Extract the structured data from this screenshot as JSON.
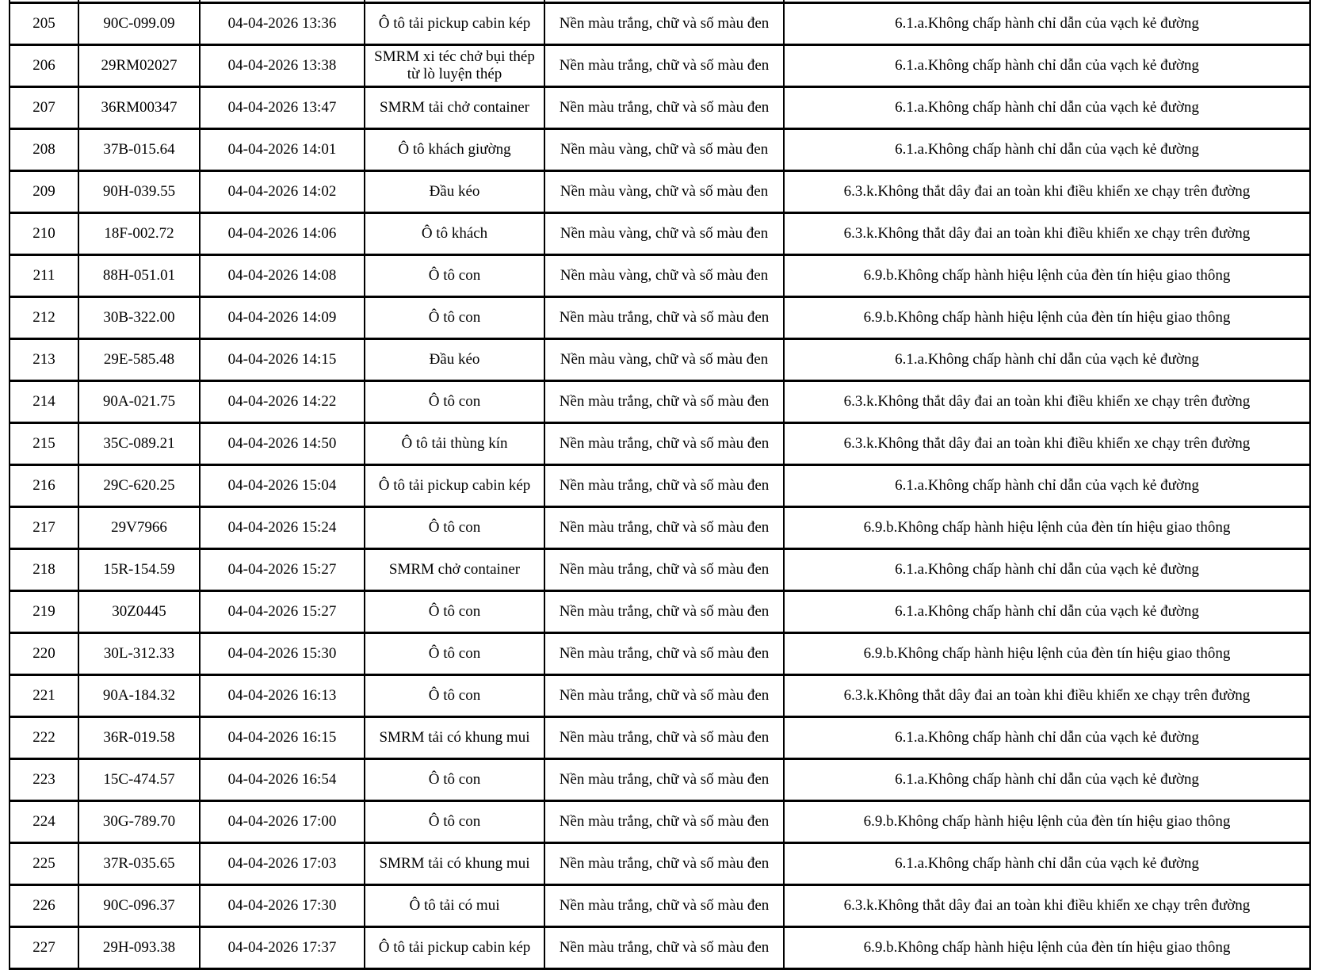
{
  "colors": {
    "border": "#000000",
    "text": "#000000",
    "background": "#ffffff"
  },
  "table": {
    "columns": [
      {
        "key": "stt"
      },
      {
        "key": "plate"
      },
      {
        "key": "datetime"
      },
      {
        "key": "vehicle"
      },
      {
        "key": "plate_colors"
      },
      {
        "key": "violation"
      }
    ],
    "rows": [
      {
        "stt": "205",
        "plate": "90C-099.09",
        "datetime": "04-04-2026 13:36",
        "vehicle": "Ô tô tải pickup cabin kép",
        "plate_colors": "Nền màu trắng, chữ và số màu đen",
        "violation": "6.1.a.Không chấp hành chỉ dẫn của vạch kẻ đường"
      },
      {
        "stt": "206",
        "plate": "29RM02027",
        "datetime": "04-04-2026 13:38",
        "vehicle": "SMRM xi téc chở bụi thép từ lò luyện thép",
        "plate_colors": "Nền màu trắng, chữ và số màu đen",
        "violation": "6.1.a.Không chấp hành chỉ dẫn của vạch kẻ đường"
      },
      {
        "stt": "207",
        "plate": "36RM00347",
        "datetime": "04-04-2026 13:47",
        "vehicle": "SMRM tải chở container",
        "plate_colors": "Nền màu trắng, chữ và số màu đen",
        "violation": "6.1.a.Không chấp hành chỉ dẫn của vạch kẻ đường"
      },
      {
        "stt": "208",
        "plate": "37B-015.64",
        "datetime": "04-04-2026 14:01",
        "vehicle": "Ô tô khách giường",
        "plate_colors": "Nền màu vàng, chữ và số màu đen",
        "violation": "6.1.a.Không chấp hành chỉ dẫn của vạch kẻ đường"
      },
      {
        "stt": "209",
        "plate": "90H-039.55",
        "datetime": "04-04-2026 14:02",
        "vehicle": "Đầu kéo",
        "plate_colors": "Nền màu vàng, chữ và số màu đen",
        "violation": "6.3.k.Không thắt dây đai an toàn khi điều khiển xe chạy trên đường"
      },
      {
        "stt": "210",
        "plate": "18F-002.72",
        "datetime": "04-04-2026 14:06",
        "vehicle": "Ô tô khách",
        "plate_colors": "Nền màu vàng, chữ và số màu đen",
        "violation": "6.3.k.Không thắt dây đai an toàn khi điều khiển xe chạy trên đường"
      },
      {
        "stt": "211",
        "plate": "88H-051.01",
        "datetime": "04-04-2026 14:08",
        "vehicle": "Ô tô con",
        "plate_colors": "Nền màu vàng, chữ và số màu đen",
        "violation": "6.9.b.Không chấp hành hiệu lệnh của đèn tín hiệu giao thông"
      },
      {
        "stt": "212",
        "plate": "30B-322.00",
        "datetime": "04-04-2026 14:09",
        "vehicle": "Ô tô con",
        "plate_colors": "Nền màu trắng, chữ và số màu đen",
        "violation": "6.9.b.Không chấp hành hiệu lệnh của đèn tín hiệu giao thông"
      },
      {
        "stt": "213",
        "plate": "29E-585.48",
        "datetime": "04-04-2026 14:15",
        "vehicle": "Đầu kéo",
        "plate_colors": "Nền màu vàng, chữ và số màu đen",
        "violation": "6.1.a.Không chấp hành chỉ dẫn của vạch kẻ đường"
      },
      {
        "stt": "214",
        "plate": "90A-021.75",
        "datetime": "04-04-2026 14:22",
        "vehicle": "Ô tô con",
        "plate_colors": "Nền màu trắng, chữ và số màu đen",
        "violation": "6.3.k.Không thắt dây đai an toàn khi điều khiển xe chạy trên đường"
      },
      {
        "stt": "215",
        "plate": "35C-089.21",
        "datetime": "04-04-2026 14:50",
        "vehicle": "Ô tô tải thùng kín",
        "plate_colors": "Nền màu trắng, chữ và số màu đen",
        "violation": "6.3.k.Không thắt dây đai an toàn khi điều khiển xe chạy trên đường"
      },
      {
        "stt": "216",
        "plate": "29C-620.25",
        "datetime": "04-04-2026 15:04",
        "vehicle": "Ô tô tải pickup cabin kép",
        "plate_colors": "Nền màu trắng, chữ và số màu đen",
        "violation": "6.1.a.Không chấp hành chỉ dẫn của vạch kẻ đường"
      },
      {
        "stt": "217",
        "plate": "29V7966",
        "datetime": "04-04-2026 15:24",
        "vehicle": "Ô tô con",
        "plate_colors": "Nền màu trắng, chữ và số màu đen",
        "violation": "6.9.b.Không chấp hành hiệu lệnh của đèn tín hiệu giao thông"
      },
      {
        "stt": "218",
        "plate": "15R-154.59",
        "datetime": "04-04-2026 15:27",
        "vehicle": "SMRM chở container",
        "plate_colors": "Nền màu trắng, chữ và số màu đen",
        "violation": "6.1.a.Không chấp hành chỉ dẫn của vạch kẻ đường"
      },
      {
        "stt": "219",
        "plate": "30Z0445",
        "datetime": "04-04-2026 15:27",
        "vehicle": "Ô tô con",
        "plate_colors": "Nền màu trắng, chữ và số màu đen",
        "violation": "6.1.a.Không chấp hành chỉ dẫn của vạch kẻ đường"
      },
      {
        "stt": "220",
        "plate": "30L-312.33",
        "datetime": "04-04-2026 15:30",
        "vehicle": "Ô tô con",
        "plate_colors": "Nền màu trắng, chữ và số màu đen",
        "violation": "6.9.b.Không chấp hành hiệu lệnh của đèn tín hiệu giao thông"
      },
      {
        "stt": "221",
        "plate": "90A-184.32",
        "datetime": "04-04-2026 16:13",
        "vehicle": "Ô tô con",
        "plate_colors": "Nền màu trắng, chữ và số màu đen",
        "violation": "6.3.k.Không thắt dây đai an toàn khi điều khiển xe chạy trên đường"
      },
      {
        "stt": "222",
        "plate": "36R-019.58",
        "datetime": "04-04-2026 16:15",
        "vehicle": "SMRM tải có khung mui",
        "plate_colors": "Nền màu trắng, chữ và số màu đen",
        "violation": "6.1.a.Không chấp hành chỉ dẫn của vạch kẻ đường"
      },
      {
        "stt": "223",
        "plate": "15C-474.57",
        "datetime": "04-04-2026 16:54",
        "vehicle": "Ô tô con",
        "plate_colors": "Nền màu trắng, chữ và số màu đen",
        "violation": "6.1.a.Không chấp hành chỉ dẫn của vạch kẻ đường"
      },
      {
        "stt": "224",
        "plate": "30G-789.70",
        "datetime": "04-04-2026 17:00",
        "vehicle": "Ô tô con",
        "plate_colors": "Nền màu trắng, chữ và số màu đen",
        "violation": "6.9.b.Không chấp hành hiệu lệnh của đèn tín hiệu giao thông"
      },
      {
        "stt": "225",
        "plate": "37R-035.65",
        "datetime": "04-04-2026 17:03",
        "vehicle": "SMRM tải có khung mui",
        "plate_colors": "Nền màu trắng, chữ và số màu đen",
        "violation": "6.1.a.Không chấp hành chỉ dẫn của vạch kẻ đường"
      },
      {
        "stt": "226",
        "plate": "90C-096.37",
        "datetime": "04-04-2026 17:30",
        "vehicle": "Ô tô tải có mui",
        "plate_colors": "Nền màu trắng, chữ và số màu đen",
        "violation": "6.3.k.Không thắt dây đai an toàn khi điều khiển xe chạy trên đường"
      },
      {
        "stt": "227",
        "plate": "29H-093.38",
        "datetime": "04-04-2026 17:37",
        "vehicle": "Ô tô tải pickup cabin kép",
        "plate_colors": "Nền màu trắng, chữ và số màu đen",
        "violation": "6.9.b.Không chấp hành hiệu lệnh của đèn tín hiệu giao thông"
      }
    ]
  }
}
